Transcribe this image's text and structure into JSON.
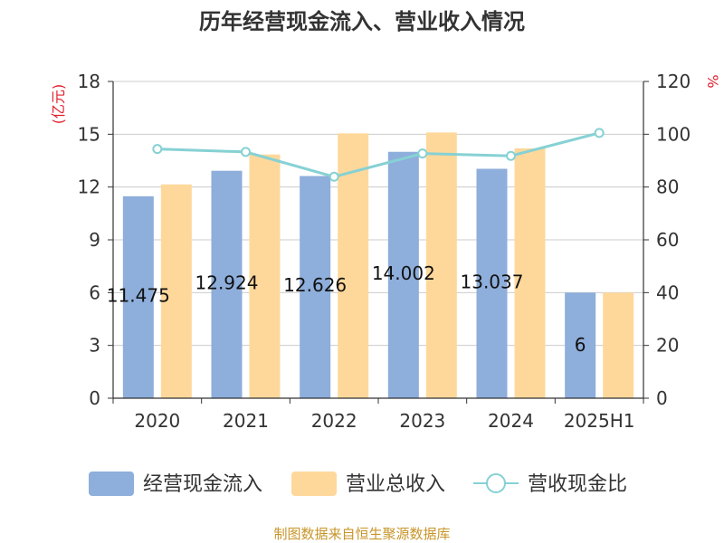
{
  "chart_data": {
    "type": "bar",
    "title": "历年经营现金流入、营业收入情况",
    "categories": [
      "2020",
      "2021",
      "2022",
      "2023",
      "2024",
      "2025H1"
    ],
    "y_left": {
      "label": "(亿元)",
      "ylim": [
        0,
        18
      ],
      "ticks": [
        0,
        3,
        6,
        9,
        12,
        15,
        18
      ]
    },
    "y_right": {
      "label": "%",
      "ylim": [
        0,
        120
      ],
      "ticks": [
        0,
        20,
        40,
        60,
        80,
        100,
        120
      ]
    },
    "grid": true,
    "legend_position": "bottom",
    "series": [
      {
        "name": "经营现金流入",
        "type": "bar",
        "axis": "left",
        "color": "#8eaedb",
        "values": [
          11.475,
          12.924,
          12.626,
          14.002,
          13.037,
          6
        ],
        "data_labels": [
          "11.475",
          "12.924",
          "12.626",
          "14.002",
          "13.037",
          "6"
        ]
      },
      {
        "name": "营业总收入",
        "type": "bar",
        "axis": "left",
        "color": "#fed89b",
        "values": [
          12.15,
          13.85,
          15.05,
          15.1,
          14.2,
          6
        ]
      },
      {
        "name": "营收现金比",
        "type": "line",
        "axis": "right",
        "color": "#86d1d4",
        "values": [
          94.4,
          93.3,
          83.9,
          92.7,
          91.8,
          100.5
        ]
      }
    ]
  },
  "footer": {
    "source": "制图数据来自恒生聚源数据库"
  }
}
